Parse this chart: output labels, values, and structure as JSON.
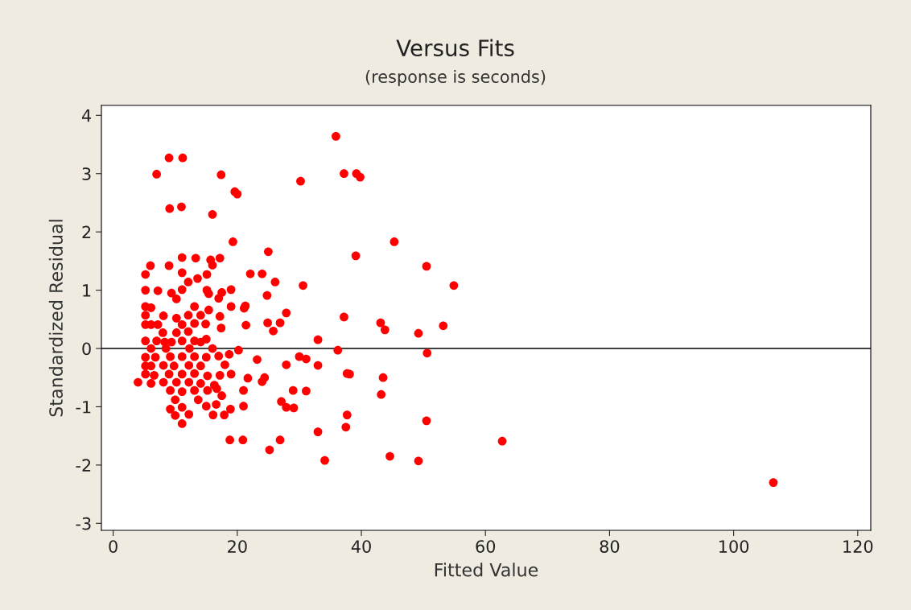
{
  "chart_data": {
    "type": "scatter",
    "title": "Versus Fits",
    "subtitle": "(response is seconds)",
    "xlabel": "Fitted Value",
    "ylabel": "Standardized Residual",
    "xlim": [
      -1.9,
      122.1
    ],
    "ylim": [
      -3.12,
      4.17
    ],
    "xticks": [
      0,
      20,
      40,
      60,
      80,
      100,
      120
    ],
    "yticks": [
      -3,
      -2,
      -1,
      0,
      1,
      2,
      3,
      4
    ],
    "grid": false,
    "legend": false,
    "marker": "circle",
    "ref_lines": [
      {
        "axis": "y",
        "value": 0,
        "color": "#000000",
        "line_style": "solid"
      }
    ],
    "series": [
      {
        "color": "#ff0000",
        "x": [
          35.9,
          37.2,
          39.2,
          39.8,
          30.2,
          9.0,
          11.2,
          7.0,
          17.4,
          9.1,
          11.0,
          16.0,
          19.6,
          20.0,
          19.3,
          45.3,
          39.1,
          50.5,
          54.9,
          30.6,
          26.1,
          22.1,
          24.0,
          25.0,
          53.2,
          49.2,
          43.1,
          43.8,
          37.2,
          33.0,
          27.9,
          26.9,
          25.8,
          24.9,
          24.8,
          21.3,
          21.4,
          36.2,
          50.6,
          30.0,
          31.1,
          33.0,
          27.9,
          23.2,
          37.7,
          38.1,
          43.5,
          24.4,
          24.0,
          21.7,
          43.2,
          29.0,
          31.1,
          27.1,
          27.9,
          29.1,
          37.7,
          37.5,
          50.5,
          21.0,
          21.0,
          33.0,
          26.9,
          20.9,
          18.8,
          25.2,
          34.1,
          44.6,
          49.2,
          62.7,
          106.4,
          4.0,
          11.1,
          13.3,
          6.0,
          9.0,
          15.7,
          17.2,
          16.0,
          5.2,
          11.1,
          15.1,
          12.1,
          13.6,
          5.2,
          7.2,
          9.4,
          11.1,
          10.2,
          15.1,
          15.4,
          17.5,
          17.0,
          19.0,
          5.2,
          6.1,
          8.1,
          10.2,
          12.1,
          13.1,
          14.1,
          15.4,
          17.2,
          19.0,
          21.1,
          5.2,
          5.2,
          6.1,
          7.2,
          8.0,
          10.2,
          11.1,
          12.1,
          13.1,
          14.9,
          17.4,
          5.2,
          7.0,
          8.3,
          9.4,
          11.1,
          13.1,
          14.1,
          15.0,
          16.0,
          6.1,
          8.5,
          12.3,
          20.2,
          5.2,
          6.8,
          9.2,
          11.1,
          13.1,
          15.0,
          17.0,
          18.7,
          5.2,
          6.1,
          8.1,
          9.8,
          12.2,
          14.1,
          18.0,
          5.2,
          6.6,
          9.0,
          11.1,
          13.1,
          15.2,
          17.2,
          19.0,
          6.1,
          8.1,
          10.2,
          12.2,
          14.1,
          16.3,
          9.2,
          11.1,
          13.1,
          15.2,
          16.7,
          17.5,
          10.0,
          13.7,
          15.0,
          16.6,
          18.9,
          9.2,
          11.1,
          10.0,
          12.2,
          16.1,
          17.9,
          11.1
        ],
        "values": [
          3.64,
          3.0,
          3.0,
          2.94,
          2.87,
          3.27,
          3.27,
          2.99,
          2.98,
          2.4,
          2.43,
          2.3,
          2.69,
          2.65,
          1.83,
          1.83,
          1.59,
          1.41,
          1.08,
          1.08,
          1.14,
          1.28,
          1.28,
          1.66,
          0.39,
          0.26,
          0.44,
          0.32,
          0.54,
          0.15,
          0.61,
          0.44,
          0.3,
          0.44,
          0.91,
          0.73,
          0.4,
          -0.03,
          -0.08,
          -0.14,
          -0.18,
          -0.29,
          -0.28,
          -0.19,
          -0.43,
          -0.44,
          -0.5,
          -0.5,
          -0.57,
          -0.51,
          -0.79,
          -0.72,
          -0.73,
          -0.91,
          -1.01,
          -1.02,
          -1.14,
          -1.35,
          -1.24,
          -0.99,
          -0.72,
          -1.43,
          -1.57,
          -1.57,
          -1.57,
          -1.74,
          -1.92,
          -1.85,
          -1.93,
          -1.59,
          -2.3,
          -0.58,
          1.56,
          1.55,
          1.42,
          1.42,
          1.52,
          1.55,
          1.43,
          1.27,
          1.3,
          1.27,
          1.14,
          1.2,
          1.0,
          0.99,
          0.95,
          1.01,
          0.85,
          1.0,
          0.94,
          0.96,
          0.86,
          1.01,
          0.72,
          0.7,
          0.56,
          0.52,
          0.57,
          0.72,
          0.57,
          0.66,
          0.55,
          0.72,
          0.69,
          0.57,
          0.41,
          0.41,
          0.41,
          0.27,
          0.27,
          0.41,
          0.29,
          0.43,
          0.42,
          0.35,
          0.13,
          0.13,
          0.11,
          0.11,
          0.13,
          0.13,
          0.11,
          0.16,
          0.0,
          0.0,
          0.0,
          0.0,
          -0.03,
          -0.15,
          -0.15,
          -0.14,
          -0.14,
          -0.14,
          -0.15,
          -0.13,
          -0.1,
          -0.3,
          -0.3,
          -0.29,
          -0.3,
          -0.29,
          -0.3,
          -0.28,
          -0.44,
          -0.46,
          -0.44,
          -0.44,
          -0.43,
          -0.47,
          -0.46,
          -0.44,
          -0.6,
          -0.58,
          -0.58,
          -0.58,
          -0.6,
          -0.63,
          -0.72,
          -0.74,
          -0.72,
          -0.72,
          -0.69,
          -0.81,
          -0.88,
          -0.88,
          -0.99,
          -0.96,
          -1.04,
          -1.04,
          -1.01,
          -1.15,
          -1.13,
          -1.14,
          -1.14,
          -1.29
        ]
      }
    ]
  }
}
